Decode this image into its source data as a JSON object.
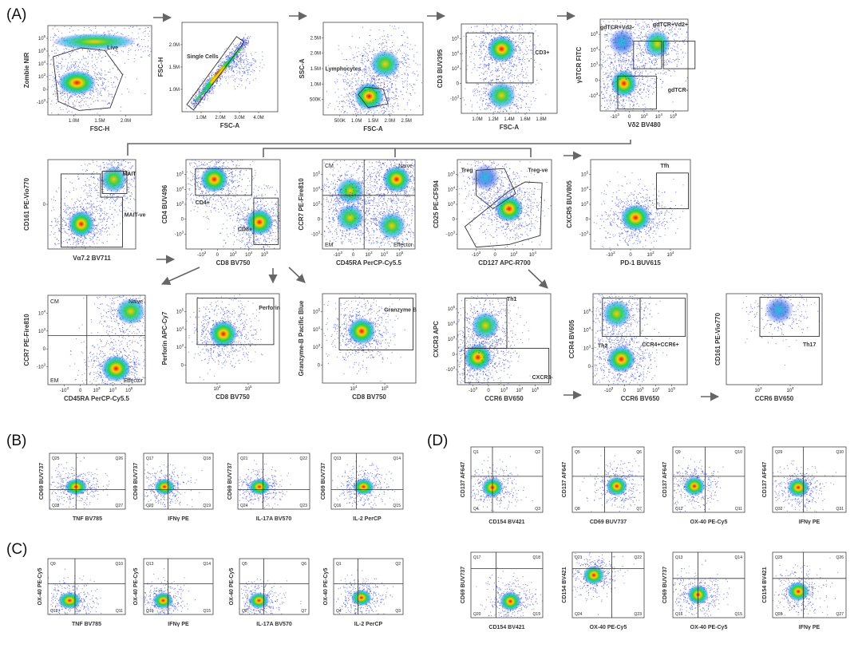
{
  "figure": {
    "section_labels": {
      "A": "(A)",
      "B": "(B)",
      "C": "(C)",
      "D": "(D)"
    },
    "watermark": "",
    "colors": {
      "arrow": "#666666",
      "gate": "#333333",
      "dot_blue": "#1f2fd0"
    }
  },
  "chart_data": [
    {
      "type": "scatter",
      "id": "A1",
      "xlabel": "FSC-H",
      "ylabel": "Zombie NIR",
      "xticks": [
        "1.0M",
        "1.5M",
        "2.0M"
      ],
      "yticks": [
        "10^6",
        "10^5",
        "10^4",
        "10^3",
        "0",
        "-10^3"
      ],
      "gates": [
        {
          "label": "Live"
        }
      ],
      "populations": [
        {
          "name": "live",
          "x": 0.28,
          "y": 0.36,
          "spread_x": 0.16,
          "spread_y": 0.12,
          "density": "high"
        },
        {
          "name": "dead",
          "x": 0.45,
          "y": 0.82,
          "spread_x": 0.35,
          "spread_y": 0.08,
          "density": "medium"
        }
      ]
    },
    {
      "type": "scatter",
      "id": "A2",
      "xlabel": "FSC-A",
      "ylabel": "FSC-H",
      "xticks": [
        "1.0M",
        "2.0M",
        "3.0M",
        "4.0M"
      ],
      "yticks": [
        "2.0M",
        "1.5M",
        "1.0M"
      ],
      "gates": [
        {
          "label": "Single Cells"
        }
      ],
      "populations": [
        {
          "name": "singlets",
          "shape": "diagonal",
          "density": "high"
        }
      ]
    },
    {
      "type": "scatter",
      "id": "A3",
      "xlabel": "FSC-A",
      "ylabel": "SSC-A",
      "xticks": [
        "500K",
        "1.0M",
        "1.5M",
        "2.0M",
        "2.5M"
      ],
      "yticks": [
        "2.5M",
        "2.0M",
        "1.5M",
        "1.0M",
        "500K"
      ],
      "gates": [
        {
          "label": "Lymphocytes"
        }
      ],
      "populations": [
        {
          "name": "lymphocytes",
          "x": 0.46,
          "y": 0.2,
          "density": "high"
        },
        {
          "name": "granulocytes",
          "x": 0.62,
          "y": 0.55,
          "density": "medium"
        }
      ]
    },
    {
      "type": "scatter",
      "id": "A4",
      "xlabel": "FSC-A",
      "ylabel": "CD3 BUV395",
      "xticks": [
        "1.0M",
        "1.2M",
        "1.4M",
        "1.6M",
        "1.8M"
      ],
      "yticks": [
        "10^5",
        "10^4",
        "10^3",
        "0",
        "-10^3"
      ],
      "gates": [
        {
          "label": "CD3+"
        }
      ],
      "populations": [
        {
          "name": "CD3+",
          "x": 0.42,
          "y": 0.72,
          "density": "high"
        },
        {
          "name": "CD3-",
          "x": 0.42,
          "y": 0.2,
          "density": "medium"
        }
      ]
    },
    {
      "type": "scatter",
      "id": "A5",
      "xlabel": "Vδ2 BV480",
      "ylabel": "γδTCR FITC",
      "xticks": [
        "-10^3",
        "0",
        "10^3",
        "10^4",
        "10^5"
      ],
      "yticks": [
        "10^5",
        "10^4",
        "10^3",
        "0",
        "-10^3"
      ],
      "gates": [
        {
          "label": "gdTCR+Vd2-"
        },
        {
          "label": "gdTCR+Vd2+"
        },
        {
          "label": "gdTCR-"
        }
      ],
      "populations": [
        {
          "name": "gdTCR-",
          "x": 0.27,
          "y": 0.3,
          "density": "high"
        },
        {
          "name": "gdTCR+Vd2-",
          "x": 0.25,
          "y": 0.75,
          "density": "low"
        },
        {
          "name": "gdTCR+Vd2+",
          "x": 0.65,
          "y": 0.73,
          "density": "medium"
        }
      ]
    },
    {
      "type": "scatter",
      "id": "A6",
      "xlabel": "Vα7.2 BV711",
      "ylabel": "CD161 PE-Vio770",
      "xticks": [],
      "yticks": [
        "0"
      ],
      "gates": [
        {
          "label": "MAIT"
        },
        {
          "label": "MAIT-ve"
        }
      ],
      "populations": [
        {
          "name": "MAIT",
          "x": 0.75,
          "y": 0.78,
          "density": "medium"
        },
        {
          "name": "MAIT-ve",
          "x": 0.38,
          "y": 0.28,
          "density": "high"
        }
      ]
    },
    {
      "type": "scatter",
      "id": "A7",
      "xlabel": "CD8 BV750",
      "ylabel": "CD4 BUV496",
      "xticks": [
        "-10^3",
        "0",
        "10^3",
        "10^4",
        "10^5"
      ],
      "yticks": [
        "10^5",
        "10^4",
        "10^3",
        "0",
        "-10^3"
      ],
      "gates": [
        {
          "label": "CD4+"
        },
        {
          "label": "CD8+"
        }
      ],
      "populations": [
        {
          "name": "CD4+",
          "x": 0.3,
          "y": 0.78,
          "density": "high"
        },
        {
          "name": "CD8+",
          "x": 0.78,
          "y": 0.3,
          "density": "high"
        }
      ]
    },
    {
      "type": "scatter",
      "id": "A8",
      "xlabel": "CD45RA PerCP-Cy5.5",
      "ylabel": "CCR7 PE-Fire810",
      "xticks": [
        "-10^3",
        "0",
        "10^3",
        "10^4",
        "10^5"
      ],
      "yticks": [
        "10^5",
        "10^4",
        "10^3",
        "0",
        "-10^3"
      ],
      "quadrants": [
        "CM",
        "Naive",
        "EM",
        "Effector"
      ],
      "populations": [
        {
          "name": "Naive",
          "x": 0.8,
          "y": 0.78,
          "density": "high"
        },
        {
          "name": "CM",
          "x": 0.3,
          "y": 0.65,
          "density": "medium"
        },
        {
          "name": "EM",
          "x": 0.3,
          "y": 0.35,
          "density": "medium"
        },
        {
          "name": "Effector",
          "x": 0.75,
          "y": 0.26,
          "density": "medium"
        }
      ]
    },
    {
      "type": "scatter",
      "id": "A9",
      "xlabel": "CD127 APC-R700",
      "ylabel": "CD25 PE-CF594",
      "xticks": [
        "-10^3",
        "0",
        "10^3",
        "10^4"
      ],
      "yticks": [
        "10^5",
        "10^4",
        "10^3",
        "0",
        "-10^3"
      ],
      "gates": [
        {
          "label": "Treg"
        },
        {
          "label": "Treg-ve"
        }
      ],
      "populations": [
        {
          "name": "Treg-ve",
          "x": 0.55,
          "y": 0.45,
          "density": "high"
        },
        {
          "name": "Treg",
          "x": 0.3,
          "y": 0.8,
          "density": "low"
        }
      ]
    },
    {
      "type": "scatter",
      "id": "A10",
      "xlabel": "PD-1 BUV615",
      "ylabel": "CXCR5 BUV805",
      "xticks": [
        "-10^3",
        "0",
        "10^3",
        "10^4"
      ],
      "yticks": [
        "10^5",
        "10^4",
        "10^3",
        "0",
        "-10^3"
      ],
      "gates": [
        {
          "label": "Tfh"
        }
      ],
      "populations": [
        {
          "name": "CXCR5-",
          "x": 0.45,
          "y": 0.35,
          "density": "high"
        }
      ]
    },
    {
      "type": "scatter",
      "id": "A11",
      "xlabel": "CD45RA PerCP-Cy5.5",
      "ylabel": "CCR7 PE-Fire810",
      "xticks": [
        "-10^3",
        "0",
        "10^3",
        "10^4",
        "10^5"
      ],
      "yticks": [
        "10^4",
        "10^3",
        "0",
        "-10^3"
      ],
      "quadrants": [
        "CM",
        "Naive",
        "EM",
        "Effector"
      ],
      "populations": [
        {
          "name": "Naive",
          "x": 0.85,
          "y": 0.82,
          "density": "medium"
        },
        {
          "name": "Effector",
          "x": 0.7,
          "y": 0.18,
          "density": "high"
        }
      ]
    },
    {
      "type": "scatter",
      "id": "A12",
      "xlabel": "CD8 BV750",
      "ylabel": "Perforin APC-Cy7",
      "xticks": [
        "10^4",
        "10^5"
      ],
      "yticks": [
        "10^5",
        "10^4",
        "10^3",
        "0"
      ],
      "gates": [
        {
          "label": "Perforin"
        }
      ],
      "populations": [
        {
          "name": "Perforin+",
          "x": 0.4,
          "y": 0.55,
          "density": "high"
        }
      ]
    },
    {
      "type": "scatter",
      "id": "A13",
      "xlabel": "CD8 BV750",
      "ylabel": "Granzyme-B Pacific Blue",
      "xticks": [
        "10^4",
        "10^5"
      ],
      "yticks": [
        "10^5",
        "10^4",
        "10^3",
        "0"
      ],
      "gates": [
        {
          "label": "Granzyme B"
        }
      ],
      "populations": [
        {
          "name": "GzmB+",
          "x": 0.42,
          "y": 0.58,
          "density": "high"
        }
      ]
    },
    {
      "type": "scatter",
      "id": "A14",
      "xlabel": "CCR6 BV650",
      "ylabel": "CXCR3 APC",
      "xticks": [
        "-10^3",
        "0",
        "10^3",
        "10^4",
        "10^5"
      ],
      "yticks": [
        "10^5",
        "10^4",
        "10^3",
        "0",
        "-10^3"
      ],
      "gates": [
        {
          "label": "Th1"
        },
        {
          "label": "CXCR3-"
        }
      ],
      "populations": [
        {
          "name": "CXCR3-",
          "x": 0.22,
          "y": 0.3,
          "density": "high"
        },
        {
          "name": "Th1",
          "x": 0.3,
          "y": 0.65,
          "density": "medium"
        }
      ]
    },
    {
      "type": "scatter",
      "id": "A15",
      "xlabel": "CCR6 BV650",
      "ylabel": "CCR4 BV605",
      "xticks": [
        "-10^3",
        "0",
        "10^3",
        "10^4",
        "10^5"
      ],
      "yticks": [
        "10^5",
        "10^4",
        "10^3",
        "0"
      ],
      "gates": [
        {
          "label": "Th2"
        },
        {
          "label": "CCR4+CCR6+"
        }
      ],
      "populations": [
        {
          "name": "CCR4-",
          "x": 0.3,
          "y": 0.28,
          "density": "high"
        },
        {
          "name": "Th2",
          "x": 0.25,
          "y": 0.78,
          "density": "medium"
        }
      ]
    },
    {
      "type": "scatter",
      "id": "A16",
      "xlabel": "CCR6 BV650",
      "ylabel": "CD161 PE-Vio770",
      "xticks": [
        "10^3",
        "10^4"
      ],
      "yticks": [],
      "gates": [
        {
          "label": "Th17"
        }
      ],
      "populations": [
        {
          "name": "Th17",
          "x": 0.55,
          "y": 0.82,
          "density": "low"
        }
      ]
    },
    {
      "type": "scatter",
      "id": "B1",
      "xlabel": "TNF BV785",
      "ylabel": "CD69 BUV737",
      "quadrants": [
        "Q25",
        "Q26",
        "Q28",
        "Q27"
      ],
      "populations": [
        {
          "name": "main",
          "x": 0.35,
          "y": 0.4,
          "density": "high"
        }
      ]
    },
    {
      "type": "scatter",
      "id": "B2",
      "xlabel": "IFNγ PE",
      "ylabel": "CD69 BUV737",
      "quadrants": [
        "Q17",
        "Q18",
        "Q20",
        "Q19"
      ],
      "populations": [
        {
          "name": "main",
          "x": 0.3,
          "y": 0.4,
          "density": "high"
        }
      ]
    },
    {
      "type": "scatter",
      "id": "B3",
      "xlabel": "IL-17A BV570",
      "ylabel": "CD69 BUV737",
      "quadrants": [
        "Q21",
        "Q22",
        "Q24",
        "Q23"
      ],
      "populations": [
        {
          "name": "main",
          "x": 0.3,
          "y": 0.4,
          "density": "high"
        }
      ]
    },
    {
      "type": "scatter",
      "id": "B4",
      "xlabel": "IL-2 PerCP",
      "ylabel": "CD69 BUV737",
      "quadrants": [
        "Q13",
        "Q14",
        "Q16",
        "Q15"
      ],
      "populations": [
        {
          "name": "main",
          "x": 0.45,
          "y": 0.4,
          "density": "high"
        }
      ]
    },
    {
      "type": "scatter",
      "id": "C1",
      "xlabel": "TNF BV785",
      "ylabel": "OX-40 PE-Cy5",
      "quadrants": [
        "Q9",
        "Q10",
        "Q12",
        "Q11"
      ],
      "populations": [
        {
          "name": "main",
          "x": 0.28,
          "y": 0.25,
          "density": "high"
        }
      ]
    },
    {
      "type": "scatter",
      "id": "C2",
      "xlabel": "IFNγ PE",
      "ylabel": "OX-40 PE-Cy5",
      "quadrants": [
        "Q13",
        "Q14",
        "Q16",
        "Q15"
      ],
      "populations": [
        {
          "name": "main",
          "x": 0.28,
          "y": 0.25,
          "density": "high"
        }
      ]
    },
    {
      "type": "scatter",
      "id": "C3",
      "xlabel": "IL-17A BV570",
      "ylabel": "OX-40 PE-Cy5",
      "quadrants": [
        "Q5",
        "Q6",
        "Q8",
        "Q7"
      ],
      "populations": [
        {
          "name": "main",
          "x": 0.28,
          "y": 0.25,
          "density": "high"
        }
      ]
    },
    {
      "type": "scatter",
      "id": "C4",
      "xlabel": "IL-2 PerCP",
      "ylabel": "OX-40 PE-Cy5",
      "quadrants": [
        "Q1",
        "Q2",
        "Q4",
        "Q3"
      ],
      "populations": [
        {
          "name": "main",
          "x": 0.4,
          "y": 0.3,
          "density": "high"
        }
      ]
    },
    {
      "type": "scatter",
      "id": "D1",
      "xlabel": "CD154 BV421",
      "ylabel": "CD137 AF647",
      "quadrants": [
        "Q1",
        "Q2",
        "Q4",
        "Q3"
      ],
      "populations": [
        {
          "name": "main",
          "x": 0.3,
          "y": 0.38,
          "density": "high"
        }
      ]
    },
    {
      "type": "scatter",
      "id": "D2",
      "xlabel": "CD69 BUV737",
      "ylabel": "CD137 AF647",
      "quadrants": [
        "Q5",
        "Q6",
        "Q8",
        "Q7"
      ],
      "populations": [
        {
          "name": "main",
          "x": 0.62,
          "y": 0.4,
          "density": "high"
        }
      ]
    },
    {
      "type": "scatter",
      "id": "D3",
      "xlabel": "OX-40 PE-Cy5",
      "ylabel": "CD137 AF647",
      "quadrants": [
        "Q9",
        "Q10",
        "Q12",
        "Q11"
      ],
      "populations": [
        {
          "name": "main",
          "x": 0.3,
          "y": 0.4,
          "density": "high"
        }
      ]
    },
    {
      "type": "scatter",
      "id": "D4",
      "xlabel": "IFNγ PE",
      "ylabel": "CD137 AF647",
      "quadrants": [
        "Q29",
        "Q30",
        "Q32",
        "Q31"
      ],
      "populations": [
        {
          "name": "main",
          "x": 0.35,
          "y": 0.38,
          "density": "high"
        }
      ]
    },
    {
      "type": "scatter",
      "id": "D5",
      "xlabel": "CD154 BV421",
      "ylabel": "CD69 BUV737",
      "quadrants": [
        "Q17",
        "Q18",
        "Q20",
        "Q19"
      ],
      "populations": [
        {
          "name": "main",
          "x": 0.55,
          "y": 0.25,
          "density": "high"
        }
      ]
    },
    {
      "type": "scatter",
      "id": "D6",
      "xlabel": "OX-40 PE-Cy5",
      "ylabel": "CD154 BV421",
      "quadrants": [
        "Q21",
        "Q22",
        "Q24",
        "Q23"
      ],
      "populations": [
        {
          "name": "main",
          "x": 0.3,
          "y": 0.65,
          "density": "high"
        }
      ]
    },
    {
      "type": "scatter",
      "id": "D7",
      "xlabel": "OX-40 PE-Cy5",
      "ylabel": "CD69 BUV737",
      "quadrants": [
        "Q13",
        "Q14",
        "Q16",
        "Q15"
      ],
      "populations": [
        {
          "name": "main",
          "x": 0.35,
          "y": 0.35,
          "density": "high"
        }
      ]
    },
    {
      "type": "scatter",
      "id": "D8",
      "xlabel": "IFNγ PE",
      "ylabel": "CD154 BV421",
      "quadrants": [
        "Q25",
        "Q26",
        "Q28",
        "Q27"
      ],
      "populations": [
        {
          "name": "main",
          "x": 0.35,
          "y": 0.4,
          "density": "high"
        }
      ]
    }
  ]
}
